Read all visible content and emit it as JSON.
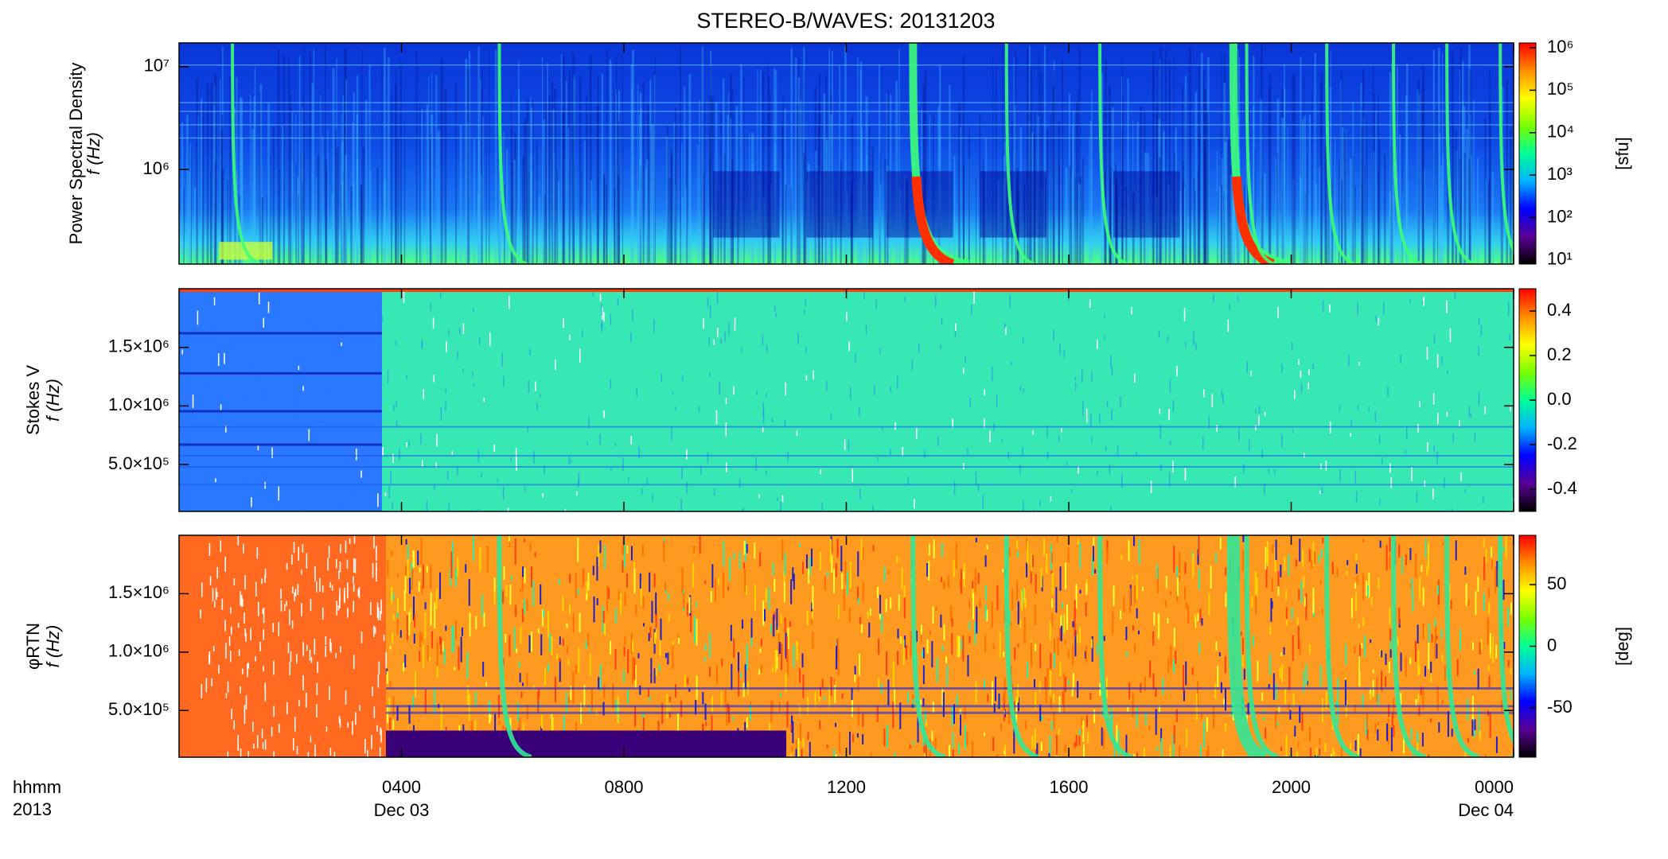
{
  "title": "STEREO-B/WAVES: 20131203",
  "xaxis": {
    "xlim": [
      0,
      24
    ],
    "xticks": [
      {
        "value": 4,
        "label": "0400"
      },
      {
        "value": 8,
        "label": "0800"
      },
      {
        "value": 12,
        "label": "1200"
      },
      {
        "value": 16,
        "label": "1600"
      },
      {
        "value": 20,
        "label": "2000"
      },
      {
        "value": 24,
        "label": "0000"
      }
    ],
    "date_labels": [
      {
        "value": 4,
        "label": "Dec 03"
      },
      {
        "value": 24,
        "label": "Dec 04"
      }
    ],
    "units_label": [
      "hhmm",
      "2013"
    ]
  },
  "colormap": [
    "#000000",
    "#5a0096",
    "#0000ff",
    "#00b4ff",
    "#00ff96",
    "#78ff00",
    "#ffff00",
    "#ff8c00",
    "#ff0000"
  ],
  "chart_data": [
    {
      "type": "spectrogram",
      "ylabel": [
        "Power Spectral Density",
        "f (Hz)"
      ],
      "ylog": true,
      "ylim": [
        120000,
        17000000
      ],
      "yticks": [
        {
          "value": 1000000,
          "label": "10⁶"
        },
        {
          "value": 10000000,
          "label": "10⁷"
        }
      ],
      "clog": true,
      "clim": [
        8,
        1300000
      ],
      "clabel": "[sfu]",
      "cticks": [
        {
          "value": 10,
          "label": "10¹"
        },
        {
          "value": 100,
          "label": "10²"
        },
        {
          "value": 1000,
          "label": "10³"
        },
        {
          "value": 10000,
          "label": "10⁴"
        },
        {
          "value": 100000,
          "label": "10⁵"
        },
        {
          "value": 1000000,
          "label": "10⁶"
        }
      ]
    },
    {
      "type": "spectrogram",
      "ylabel": [
        "Stokes V",
        "f (Hz)"
      ],
      "ylog": false,
      "ylim": [
        100000,
        2000000
      ],
      "yticks": [
        {
          "value": 500000,
          "label": "5.0×10⁵"
        },
        {
          "value": 1000000,
          "label": "1.0×10⁶"
        },
        {
          "value": 1500000,
          "label": "1.5×10⁶"
        }
      ],
      "clog": false,
      "clim": [
        -0.5,
        0.5
      ],
      "cticks": [
        {
          "value": -0.4,
          "label": "-0.4"
        },
        {
          "value": -0.2,
          "label": "-0.2"
        },
        {
          "value": 0,
          "label": "0.0"
        },
        0.2,
        0.4
      ]
    },
    {
      "type": "spectrogram",
      "ylabel": [
        "φRTN",
        "f (Hz)"
      ],
      "ylog": false,
      "ylim": [
        100000,
        2000000
      ],
      "yticks": [
        {
          "value": 500000,
          "label": "5.0×10⁵"
        },
        {
          "value": 1000000,
          "label": "1.0×10⁶"
        },
        {
          "value": 1500000,
          "label": "1.5×10⁶"
        }
      ],
      "clog": false,
      "clim": [
        -90,
        90
      ],
      "clabel": "[deg]",
      "cticks": [
        -50,
        0,
        50
      ]
    }
  ]
}
